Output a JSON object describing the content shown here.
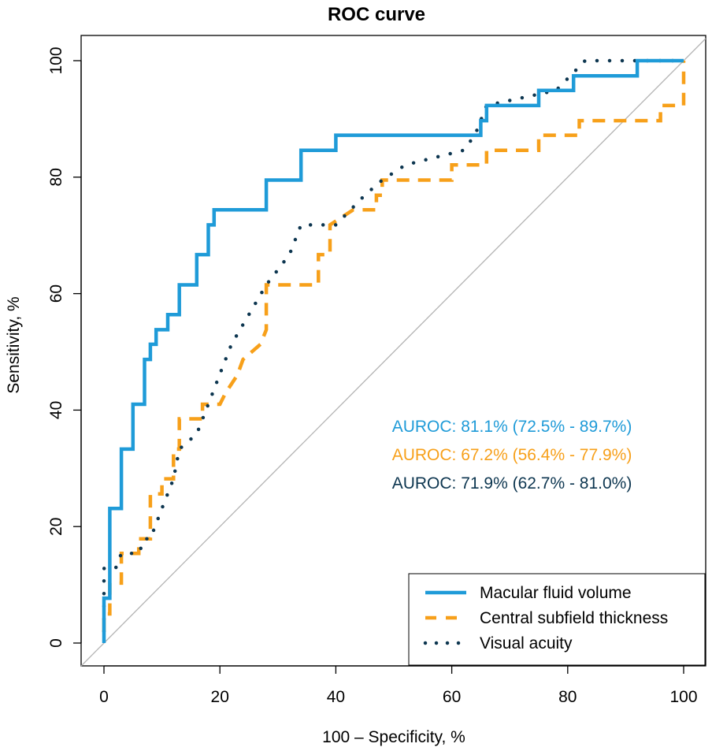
{
  "chart_data": {
    "type": "line",
    "title": "ROC curve",
    "xlabel": "100 – Specificity, %",
    "ylabel": "Sensitivity, %",
    "xlim": [
      0,
      100
    ],
    "ylim": [
      0,
      100
    ],
    "x_ticks": [
      "0",
      "20",
      "40",
      "60",
      "80",
      "100"
    ],
    "y_ticks": [
      "0",
      "20",
      "40",
      "60",
      "80",
      "100"
    ],
    "grid": false,
    "reference_line": {
      "from": [
        0,
        0
      ],
      "to": [
        100,
        100
      ],
      "color": "#b3b3b3"
    },
    "legend": {
      "position": "bottom-right"
    },
    "annotations": [
      {
        "text": "AUROC: 81.1% (72.5% - 89.7%)",
        "color": "#1f9bd8"
      },
      {
        "text": "AUROC: 67.2% (56.4% - 77.9%)",
        "color": "#f7a01a"
      },
      {
        "text": "AUROC: 71.9% (62.7% - 81.0%)",
        "color": "#0d3650"
      }
    ],
    "series": [
      {
        "name": "Macular fluid volume",
        "color": "#1f9bd8",
        "style": "solid",
        "points": [
          [
            0,
            0
          ],
          [
            0,
            7.7
          ],
          [
            1,
            7.7
          ],
          [
            1,
            23.1
          ],
          [
            3,
            23.1
          ],
          [
            3,
            33.3
          ],
          [
            5,
            33.3
          ],
          [
            5,
            41
          ],
          [
            7,
            41
          ],
          [
            7,
            48.7
          ],
          [
            8,
            48.7
          ],
          [
            8,
            51.3
          ],
          [
            9,
            51.3
          ],
          [
            9,
            53.8
          ],
          [
            11,
            53.8
          ],
          [
            11,
            56.4
          ],
          [
            13,
            56.4
          ],
          [
            13,
            61.5
          ],
          [
            16,
            61.5
          ],
          [
            16,
            66.7
          ],
          [
            18,
            66.7
          ],
          [
            18,
            71.8
          ],
          [
            19,
            71.8
          ],
          [
            19,
            74.4
          ],
          [
            28,
            74.4
          ],
          [
            28,
            79.5
          ],
          [
            34,
            79.5
          ],
          [
            34,
            84.6
          ],
          [
            40,
            84.6
          ],
          [
            40,
            87.2
          ],
          [
            65,
            87.2
          ],
          [
            65,
            89.7
          ],
          [
            66,
            89.7
          ],
          [
            66,
            92.3
          ],
          [
            75,
            92.3
          ],
          [
            75,
            94.9
          ],
          [
            81,
            94.9
          ],
          [
            81,
            97.4
          ],
          [
            92,
            97.4
          ],
          [
            92,
            100
          ],
          [
            100,
            100
          ]
        ]
      },
      {
        "name": "Central subfield thickness",
        "color": "#f7a01a",
        "style": "dashed",
        "points": [
          [
            0,
            2
          ],
          [
            0,
            5
          ],
          [
            1,
            5
          ],
          [
            1,
            10.3
          ],
          [
            3,
            10.3
          ],
          [
            3,
            15.4
          ],
          [
            6,
            15.4
          ],
          [
            6,
            17.9
          ],
          [
            8,
            17.9
          ],
          [
            8,
            25.6
          ],
          [
            10,
            25.6
          ],
          [
            10,
            28.2
          ],
          [
            12,
            28.2
          ],
          [
            12,
            33.3
          ],
          [
            13,
            33.3
          ],
          [
            13,
            38.5
          ],
          [
            17,
            38.5
          ],
          [
            17,
            41
          ],
          [
            20,
            41
          ],
          [
            21,
            43
          ],
          [
            23,
            46
          ],
          [
            24,
            48.7
          ],
          [
            27,
            51.3
          ],
          [
            28,
            53.8
          ],
          [
            28,
            61.5
          ],
          [
            37,
            61.5
          ],
          [
            37,
            66.7
          ],
          [
            39,
            66.7
          ],
          [
            39,
            71.8
          ],
          [
            43,
            74.4
          ],
          [
            47,
            74.4
          ],
          [
            47,
            76.9
          ],
          [
            48,
            76.9
          ],
          [
            48,
            79.5
          ],
          [
            60,
            79.5
          ],
          [
            60,
            82.1
          ],
          [
            66,
            82.1
          ],
          [
            66,
            84.6
          ],
          [
            75,
            84.6
          ],
          [
            75,
            87.2
          ],
          [
            82,
            87.2
          ],
          [
            82,
            89.7
          ],
          [
            96,
            89.7
          ],
          [
            96,
            92.3
          ],
          [
            100,
            92.3
          ],
          [
            100,
            100
          ]
        ]
      },
      {
        "name": "Visual acuity",
        "color": "#0d3650",
        "style": "dotted",
        "points": [
          [
            0,
            2
          ],
          [
            0,
            12.8
          ],
          [
            2,
            12.8
          ],
          [
            3,
            15.4
          ],
          [
            6,
            15.4
          ],
          [
            7,
            17.9
          ],
          [
            8,
            17.9
          ],
          [
            10,
            23.1
          ],
          [
            12,
            28.2
          ],
          [
            13,
            33.3
          ],
          [
            16,
            35.9
          ],
          [
            18,
            41
          ],
          [
            20,
            46.2
          ],
          [
            22,
            51.3
          ],
          [
            25,
            56.4
          ],
          [
            28,
            61.5
          ],
          [
            32,
            66.7
          ],
          [
            34,
            71.8
          ],
          [
            40,
            71.8
          ],
          [
            45,
            76.9
          ],
          [
            48,
            79.5
          ],
          [
            52,
            82.1
          ],
          [
            62,
            84.6
          ],
          [
            64,
            87.2
          ],
          [
            66,
            92.3
          ],
          [
            78,
            94.9
          ],
          [
            83,
            100
          ],
          [
            100,
            100
          ]
        ]
      }
    ]
  }
}
